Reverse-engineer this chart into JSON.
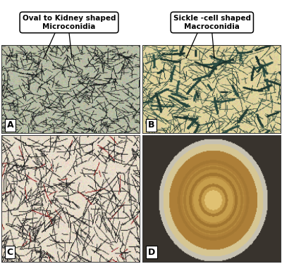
{
  "label_A": "A",
  "label_B": "B",
  "label_C": "C",
  "label_D": "D",
  "annotation_A": "Oval to Kidney shaped\nMicroconidia",
  "annotation_B": "Sickle -cell shaped\nMacroconidia",
  "panel_A_base": [
    0.72,
    0.74,
    0.65
  ],
  "panel_A_filament": [
    0.12,
    0.14,
    0.14
  ],
  "panel_B_base": [
    0.88,
    0.83,
    0.62
  ],
  "panel_B_filament": [
    0.18,
    0.32,
    0.28
  ],
  "panel_C_base": [
    0.91,
    0.87,
    0.8
  ],
  "panel_C_filament": [
    0.2,
    0.2,
    0.2
  ],
  "figure_bg": "#ffffff"
}
